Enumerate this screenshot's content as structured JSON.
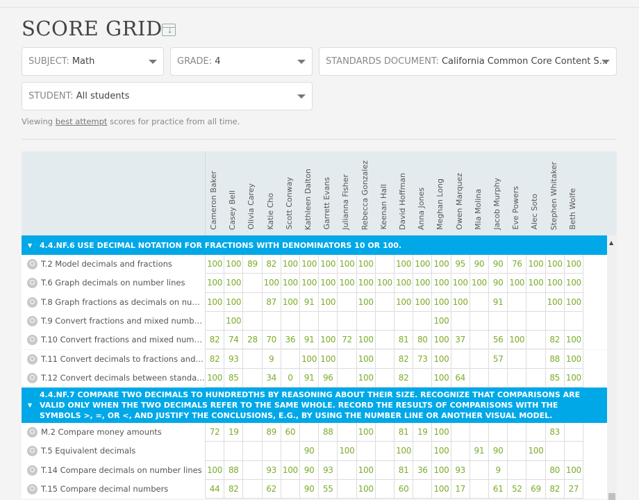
{
  "page": {
    "title": "SCORE GRID",
    "export_icon": "table-export-icon"
  },
  "filters": {
    "subject": {
      "label": "SUBJECT:",
      "value": "Math"
    },
    "grade": {
      "label": "GRADE:",
      "value": "4"
    },
    "standards": {
      "label": "STANDARDS DOCUMENT:",
      "value": "California Common Core Content S..."
    },
    "student": {
      "label": "STUDENT:",
      "value": "All students"
    }
  },
  "note": {
    "prefix": "Viewing ",
    "link": "best attempt",
    "suffix": " scores for practice from all time."
  },
  "colors": {
    "accent": "#00a8e8",
    "score": "#7cac2a",
    "header_bg": "#e4ebef"
  },
  "students": [
    "Cameron Baker",
    "Casey Bell",
    "Olivia Carey",
    "Katie Cho",
    "Scott Conway",
    "Kathleen Dalton",
    "Garrett Evans",
    "Julianna Fisher",
    "Rebecca Gonzalez",
    "Keenan Hall",
    "David Hoffman",
    "Anna Jones",
    "Meghan Long",
    "Owen Marquez",
    "Mia Molina",
    "Jacob Murphy",
    "Eve Powers",
    "Alec Soto",
    "Stephen Whitaker",
    "Beth Wolfe"
  ],
  "sections": [
    {
      "title": "4.4.NF.6 USE DECIMAL NOTATION FOR FRACTIONS WITH DENOMINATORS 10 OR 100.",
      "skills": [
        {
          "name": "T.2 Model decimals and fractions",
          "scores": [
            "100",
            "100",
            "89",
            "82",
            "100",
            "100",
            "100",
            "100",
            "100",
            "",
            "100",
            "100",
            "100",
            "95",
            "90",
            "90",
            "76",
            "100",
            "100",
            "100"
          ]
        },
        {
          "name": "T.6 Graph decimals on number lines",
          "scores": [
            "100",
            "100",
            "",
            "100",
            "100",
            "100",
            "100",
            "100",
            "100",
            "100",
            "100",
            "100",
            "100",
            "100",
            "100",
            "90",
            "100",
            "100",
            "100",
            "100"
          ]
        },
        {
          "name": "T.8 Graph fractions as decimals on numb...",
          "scores": [
            "100",
            "100",
            "",
            "87",
            "100",
            "91",
            "100",
            "",
            "100",
            "",
            "100",
            "100",
            "100",
            "100",
            "",
            "91",
            "",
            "",
            "100",
            "100"
          ]
        },
        {
          "name": "T.9 Convert fractions and mixed numbers...",
          "scores": [
            "",
            "100",
            "",
            "",
            "",
            "",
            "",
            "",
            "",
            "",
            "",
            "",
            "100",
            "",
            "",
            "",
            "",
            "",
            "",
            ""
          ]
        },
        {
          "name": "T.10 Convert fractions and mixed number...",
          "scores": [
            "82",
            "74",
            "28",
            "70",
            "36",
            "91",
            "100",
            "72",
            "100",
            "",
            "81",
            "80",
            "100",
            "37",
            "",
            "56",
            "100",
            "",
            "82",
            "100"
          ]
        },
        {
          "name": "T.11 Convert decimals to fractions and mi...",
          "scores": [
            "82",
            "93",
            "",
            "9",
            "",
            "100",
            "100",
            "",
            "100",
            "",
            "82",
            "73",
            "100",
            "",
            "",
            "57",
            "",
            "",
            "88",
            "100"
          ]
        },
        {
          "name": "T.12 Convert decimals between standard ...",
          "scores": [
            "100",
            "85",
            "",
            "34",
            "0",
            "91",
            "96",
            "",
            "100",
            "",
            "82",
            "",
            "100",
            "64",
            "",
            "",
            "",
            "",
            "85",
            "100"
          ]
        }
      ]
    },
    {
      "title": "4.4.NF.7 COMPARE TWO DECIMALS TO HUNDREDTHS BY REASONING ABOUT THEIR SIZE. RECOGNIZE THAT COMPARISONS ARE VALID ONLY WHEN THE TWO DECIMALS REFER TO THE SAME WHOLE. RECORD THE RESULTS OF COMPARISONS WITH THE SYMBOLS >, =, OR <, AND JUSTIFY THE CONCLUSIONS, E.G., BY USING THE NUMBER LINE OR ANOTHER VISUAL MODEL.",
      "skills": [
        {
          "name": "M.2 Compare money amounts",
          "scores": [
            "72",
            "19",
            "",
            "89",
            "60",
            "",
            "88",
            "",
            "100",
            "",
            "81",
            "19",
            "100",
            "",
            "",
            "",
            "",
            "",
            "83",
            ""
          ]
        },
        {
          "name": "T.5 Equivalent decimals",
          "scores": [
            "",
            "",
            "",
            "",
            "",
            "90",
            "",
            "100",
            "",
            "",
            "100",
            "",
            "100",
            "",
            "91",
            "90",
            "",
            "100",
            "",
            ""
          ]
        },
        {
          "name": "T.14 Compare decimals on number lines",
          "scores": [
            "100",
            "88",
            "",
            "93",
            "100",
            "90",
            "93",
            "",
            "100",
            "",
            "81",
            "36",
            "100",
            "93",
            "",
            "9",
            "",
            "",
            "80",
            "100"
          ]
        },
        {
          "name": "T.15 Compare decimal numbers",
          "scores": [
            "44",
            "82",
            "",
            "62",
            "",
            "90",
            "55",
            "",
            "100",
            "",
            "60",
            "",
            "100",
            "17",
            "",
            "61",
            "52",
            "69",
            "82",
            "27"
          ]
        }
      ]
    }
  ]
}
